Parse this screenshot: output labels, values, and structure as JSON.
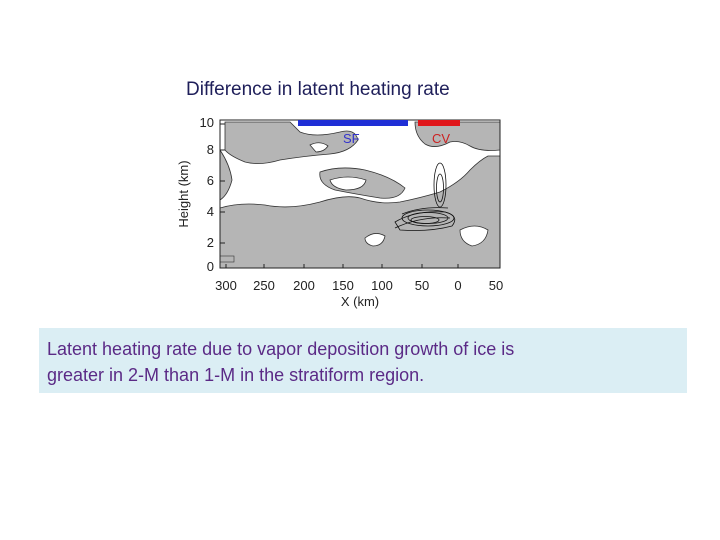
{
  "slide": {
    "title": "Difference in latent heating rate",
    "caption_line1": "Latent heating rate due to vapor deposition growth of ice is",
    "caption_line2": "greater in 2-M than 1-M in the stratiform region."
  },
  "figure": {
    "y_axis_label": "Height (km)",
    "x_axis_label": "X (km)",
    "y_ticks": [
      "10",
      "8",
      "6",
      "4",
      "2",
      "0"
    ],
    "x_ticks": [
      "300",
      "250",
      "200",
      "150",
      "100",
      "50",
      "0",
      "50"
    ],
    "region_labels": {
      "sf": "SF",
      "cv": "CV"
    },
    "colors": {
      "sf_bar": "#1f2fd6",
      "cv_bar": "#e0161a",
      "shading": "#b5b5b5"
    }
  }
}
